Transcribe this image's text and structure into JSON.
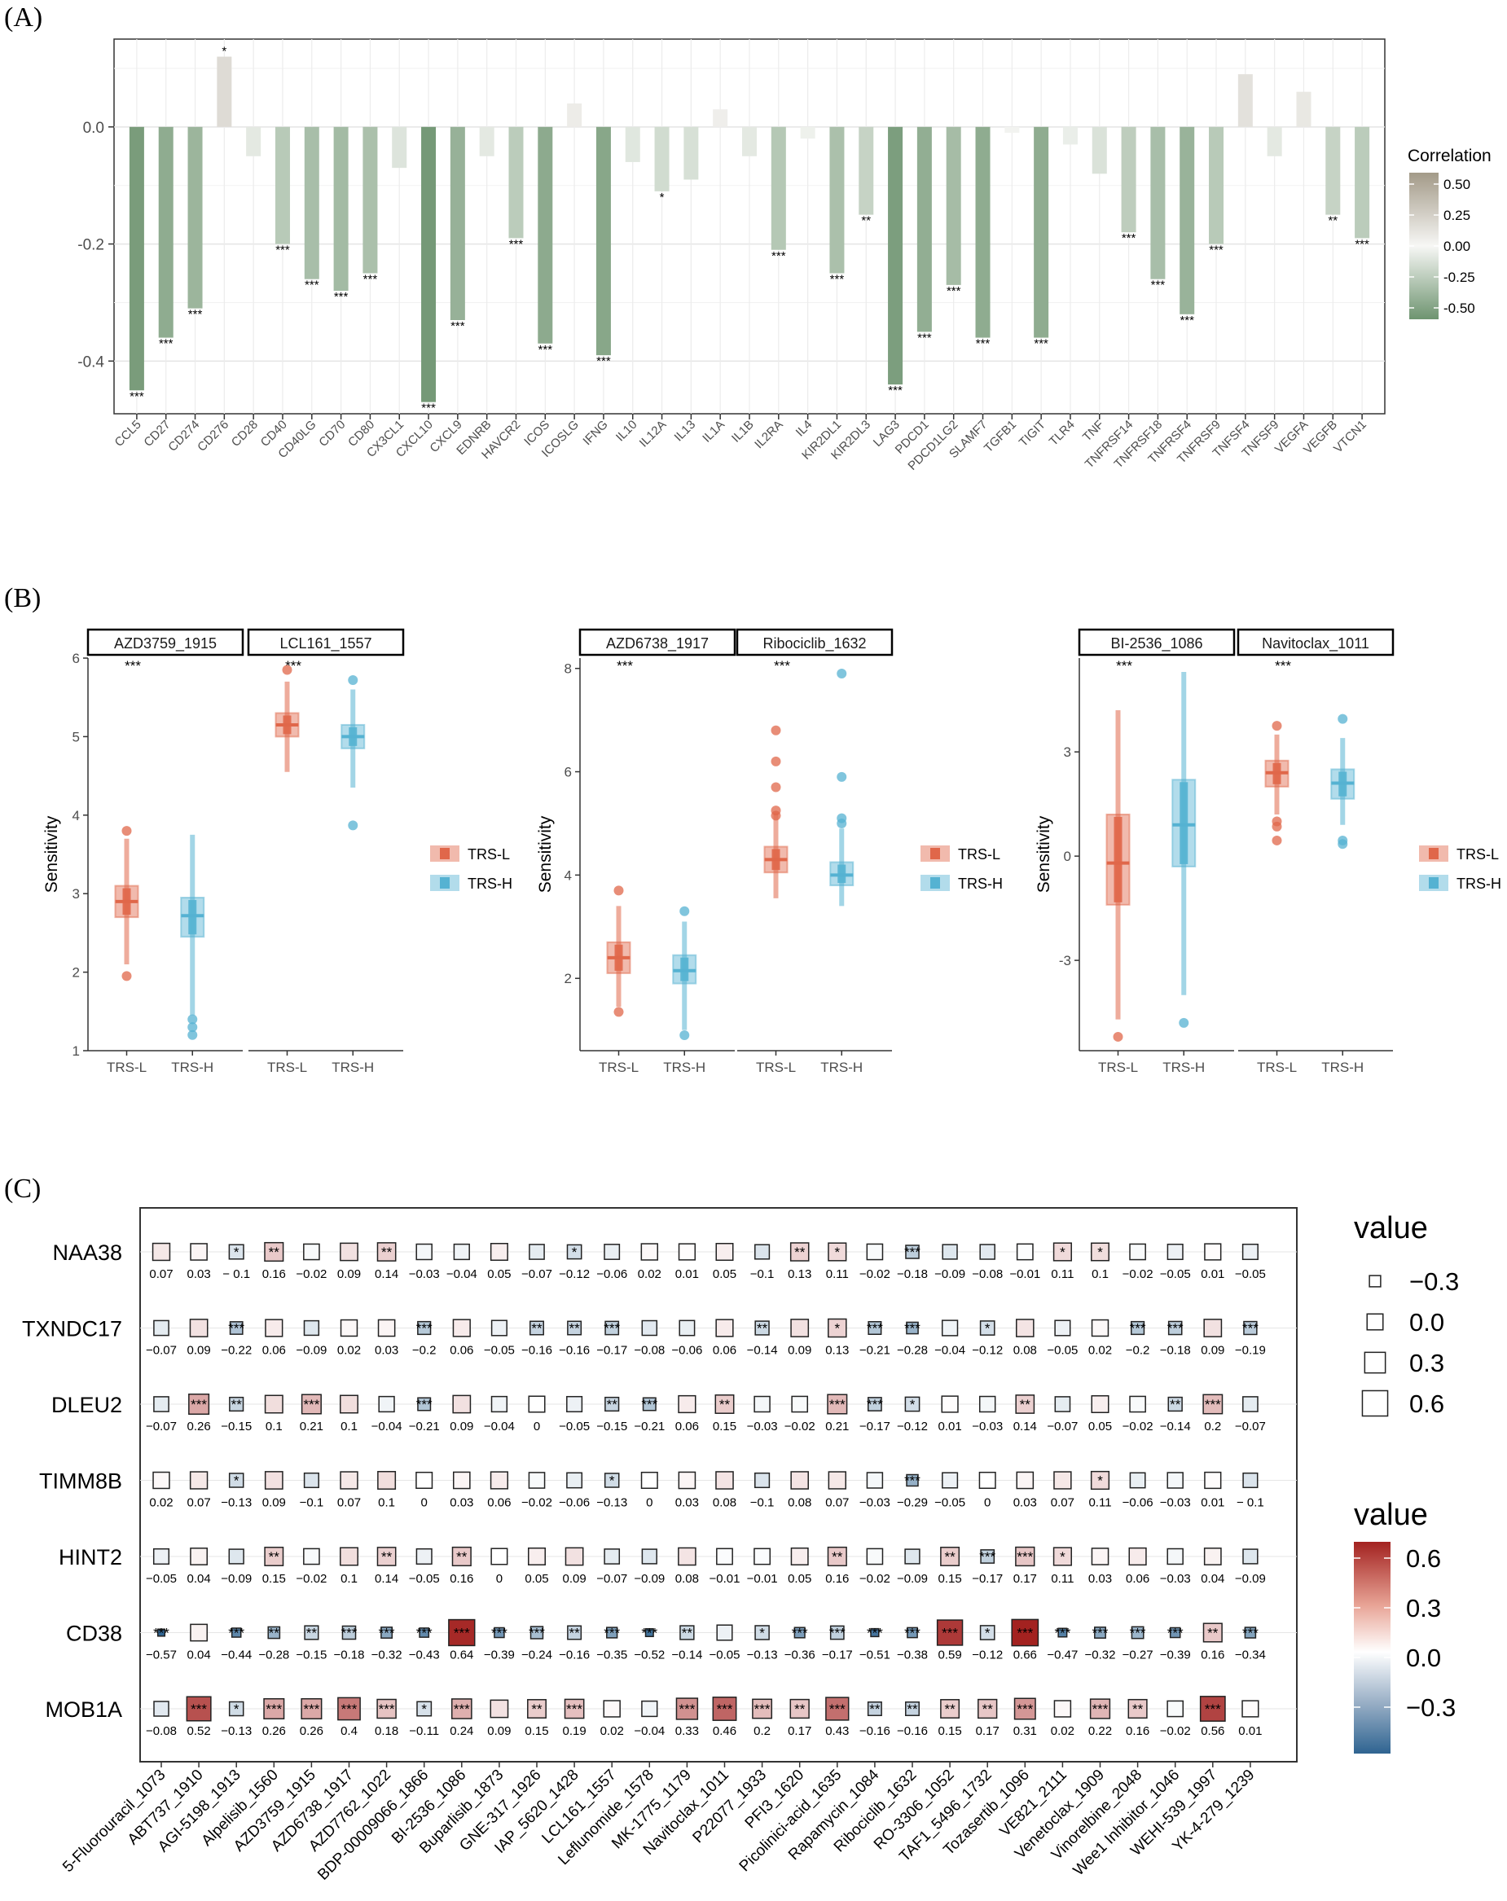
{
  "chart_data": [
    {
      "type": "bar",
      "panel_label": "(A)",
      "categories": [
        "CCL5",
        "CD27",
        "CD274",
        "CD276",
        "CD28",
        "CD40",
        "CD40LG",
        "CD70",
        "CD80",
        "CX3CL1",
        "CXCL10",
        "CXCL9",
        "EDNRB",
        "HAVCR2",
        "ICOS",
        "ICOSLG",
        "IFNG",
        "IL10",
        "IL12A",
        "IL13",
        "IL1A",
        "IL1B",
        "IL2RA",
        "IL4",
        "KIR2DL1",
        "KIR2DL3",
        "LAG3",
        "PDCD1",
        "PDCD1LG2",
        "SLAMF7",
        "TGFB1",
        "TIGIT",
        "TLR4",
        "TNF",
        "TNFRSF14",
        "TNFRSF18",
        "TNFRSF4",
        "TNFRSF9",
        "TNFSF4",
        "TNFSF9",
        "VEGFA",
        "VEGFB",
        "VTCN1"
      ],
      "values": [
        -0.45,
        -0.36,
        -0.31,
        0.12,
        -0.05,
        -0.2,
        -0.26,
        -0.28,
        -0.25,
        -0.07,
        -0.47,
        -0.33,
        -0.05,
        -0.19,
        -0.37,
        0.04,
        -0.39,
        -0.06,
        -0.11,
        -0.09,
        0.03,
        -0.05,
        -0.21,
        -0.02,
        -0.25,
        -0.15,
        -0.44,
        -0.35,
        -0.27,
        -0.36,
        -0.01,
        -0.36,
        -0.03,
        -0.08,
        -0.18,
        -0.26,
        -0.32,
        -0.2,
        0.09,
        -0.05,
        0.06,
        -0.15,
        -0.19
      ],
      "significance": [
        "***",
        "***",
        "***",
        "*",
        "",
        "***",
        "***",
        "***",
        "***",
        "",
        "***",
        "***",
        "",
        "***",
        "***",
        "",
        "***",
        "",
        "*",
        "",
        "",
        "",
        "***",
        "",
        "***",
        "**",
        "***",
        "***",
        "***",
        "***",
        "",
        "***",
        "",
        "",
        "***",
        "***",
        "***",
        "***",
        "",
        "",
        "",
        "**",
        "***"
      ],
      "yticks": [
        "0.0",
        "-0.2",
        "-0.4"
      ],
      "ylim": [
        -0.49,
        0.15
      ],
      "legend": {
        "title": "Correlation",
        "ticks": [
          "0.50",
          "0.25",
          "0.00",
          "-0.25",
          "-0.50"
        ]
      },
      "colors": {
        "negative": "#6e9470",
        "zero": "#f7f7f5",
        "positive": "#a39a88"
      }
    },
    {
      "type": "box",
      "panel_label": "(B)",
      "legend": {
        "groups": [
          "TRS-L",
          "TRS-H"
        ],
        "colors": [
          "#e0674a",
          "#55b2d2"
        ]
      },
      "ylabel": "Sensitivity",
      "groups": [
        {
          "yticks": [
            "6",
            "5",
            "4",
            "3",
            "2",
            "1"
          ],
          "ylim": [
            1,
            6
          ],
          "facets": [
            {
              "title": "AZD3759_1915",
              "sig": "***",
              "boxes": [
                {
                  "group": "TRS-L",
                  "q1": 2.7,
                  "median": 2.9,
                  "q3": 3.1,
                  "wlo": 2.1,
                  "whi": 3.7,
                  "outliers": [
                    1.95,
                    3.8
                  ]
                },
                {
                  "group": "TRS-H",
                  "q1": 2.45,
                  "median": 2.72,
                  "q3": 2.95,
                  "wlo": 1.45,
                  "whi": 3.75,
                  "outliers": [
                    1.2,
                    1.3,
                    1.4
                  ]
                }
              ]
            },
            {
              "title": "LCL161_1557",
              "sig": "***",
              "boxes": [
                {
                  "group": "TRS-L",
                  "q1": 5.0,
                  "median": 5.15,
                  "q3": 5.3,
                  "wlo": 4.55,
                  "whi": 5.7,
                  "outliers": [
                    5.85
                  ]
                },
                {
                  "group": "TRS-H",
                  "q1": 4.85,
                  "median": 5.0,
                  "q3": 5.15,
                  "wlo": 4.35,
                  "whi": 5.6,
                  "outliers": [
                    3.87,
                    5.72
                  ]
                }
              ]
            }
          ]
        },
        {
          "yticks": [
            "8",
            "6",
            "4",
            "2"
          ],
          "ylim": [
            0.6,
            8.2
          ],
          "facets": [
            {
              "title": "AZD6738_1917",
              "sig": "***",
              "boxes": [
                {
                  "group": "TRS-L",
                  "q1": 2.1,
                  "median": 2.4,
                  "q3": 2.7,
                  "wlo": 1.45,
                  "whi": 3.4,
                  "outliers": [
                    1.35,
                    3.7
                  ]
                },
                {
                  "group": "TRS-H",
                  "q1": 1.9,
                  "median": 2.15,
                  "q3": 2.45,
                  "wlo": 1.0,
                  "whi": 3.1,
                  "outliers": [
                    0.9,
                    3.3
                  ]
                }
              ]
            },
            {
              "title": "Ribociclib_1632",
              "sig": "***",
              "boxes": [
                {
                  "group": "TRS-L",
                  "q1": 4.05,
                  "median": 4.3,
                  "q3": 4.55,
                  "wlo": 3.55,
                  "whi": 5.2,
                  "outliers": [
                    5.15,
                    5.25,
                    5.7,
                    6.2,
                    6.8
                  ]
                },
                {
                  "group": "TRS-H",
                  "q1": 3.8,
                  "median": 4.0,
                  "q3": 4.25,
                  "wlo": 3.4,
                  "whi": 4.9,
                  "outliers": [
                    5.0,
                    5.1,
                    5.9,
                    7.9
                  ]
                }
              ]
            }
          ]
        },
        {
          "yticks": [
            "3",
            "0",
            "-3"
          ],
          "ylim": [
            -5.6,
            5.7
          ],
          "facets": [
            {
              "title": "BI-2536_1086",
              "sig": "***",
              "boxes": [
                {
                  "group": "TRS-L",
                  "q1": -1.4,
                  "median": -0.2,
                  "q3": 1.2,
                  "wlo": -4.7,
                  "whi": 4.2,
                  "outliers": [
                    -5.2
                  ]
                },
                {
                  "group": "TRS-H",
                  "q1": -0.3,
                  "median": 0.9,
                  "q3": 2.2,
                  "wlo": -4.0,
                  "whi": 5.3,
                  "outliers": [
                    -4.8
                  ]
                }
              ]
            },
            {
              "title": "Navitoclax_1011",
              "sig": "***",
              "boxes": [
                {
                  "group": "TRS-L",
                  "q1": 2.0,
                  "median": 2.4,
                  "q3": 2.75,
                  "wlo": 1.2,
                  "whi": 3.5,
                  "outliers": [
                    0.45,
                    0.85,
                    1.0,
                    3.75
                  ]
                },
                {
                  "group": "TRS-H",
                  "q1": 1.65,
                  "median": 2.1,
                  "q3": 2.5,
                  "wlo": 0.9,
                  "whi": 3.4,
                  "outliers": [
                    0.35,
                    0.45,
                    3.95
                  ]
                }
              ]
            }
          ]
        }
      ]
    },
    {
      "type": "heatmap",
      "panel_label": "(C)",
      "rows": [
        "NAA38",
        "TXNDC17",
        "DLEU2",
        "TIMM8B",
        "HINT2",
        "CD38",
        "MOB1A"
      ],
      "columns": [
        "5-Fluorouracil_1073",
        "ABT737_1910",
        "AGI-5198_1913",
        "Alpelisib_1560",
        "AZD3759_1915",
        "AZD6738_1917",
        "AZD7762_1022",
        "BDP-00009066_1866",
        "BI-2536_1086",
        "Buparlisib_1873",
        "GNE-317_1926",
        "IAP_5620_1428",
        "LCL161_1557",
        "Leflunomide_1578",
        "MK-1775_1179",
        "Navitoclax_1011",
        "P22077_1933",
        "PFI3_1620",
        "Picolinici-acid_1635",
        "Rapamycin_1084",
        "Ribociclib_1632",
        "RO-3306_1052",
        "TAF1_5496_1732",
        "Tozasertib_1096",
        "VE821_2111",
        "Venetoclax_1909",
        "Vinorelbine_2048",
        "Wee1 Inhibitor_1046",
        "WEHI-539_1997",
        "YK-4-279_1239"
      ],
      "labels": [
        [
          "0.07",
          "0.03",
          "− 0.1",
          "0.16",
          "−0.02",
          "0.09",
          "0.14",
          "−0.03",
          "−0.04",
          "0.05",
          "−0.07",
          "−0.12",
          "−0.06",
          "0.02",
          "0.01",
          "0.05",
          "−0.1",
          "0.13",
          "0.11",
          "−0.02",
          "−0.18",
          "−0.09",
          "−0.08",
          "−0.01",
          "0.11",
          "0.1",
          "−0.02",
          "−0.05",
          "0.01",
          "−0.05"
        ],
        [
          "−0.07",
          "0.09",
          "−0.22",
          "0.06",
          "−0.09",
          "0.02",
          "0.03",
          "−0.2",
          "0.06",
          "−0.05",
          "−0.16",
          "−0.16",
          "−0.17",
          "−0.08",
          "−0.06",
          "0.06",
          "−0.14",
          "0.09",
          "0.13",
          "−0.21",
          "−0.28",
          "−0.04",
          "−0.12",
          "0.08",
          "−0.05",
          "0.02",
          "−0.2",
          "−0.18",
          "0.09",
          "−0.19"
        ],
        [
          "−0.07",
          "0.26",
          "−0.15",
          "0.1",
          "0.21",
          "0.1",
          "−0.04",
          "−0.21",
          "0.09",
          "−0.04",
          "0",
          "−0.05",
          "−0.15",
          "−0.21",
          "0.06",
          "0.15",
          "−0.03",
          "−0.02",
          "0.21",
          "−0.17",
          "−0.12",
          "0.01",
          "−0.03",
          "0.14",
          "−0.07",
          "0.05",
          "−0.02",
          "−0.14",
          "0.2",
          "−0.07"
        ],
        [
          "0.02",
          "0.07",
          "−0.13",
          "0.09",
          "−0.1",
          "0.07",
          "0.1",
          "0",
          "0.03",
          "0.06",
          "−0.02",
          "−0.06",
          "−0.13",
          "0",
          "0.03",
          "0.08",
          "−0.1",
          "0.08",
          "0.07",
          "−0.03",
          "−0.29",
          "−0.05",
          "0",
          "0.03",
          "0.07",
          "0.11",
          "−0.06",
          "−0.03",
          "0.01",
          "− 0.1"
        ],
        [
          "−0.05",
          "0.04",
          "−0.09",
          "0.15",
          "−0.02",
          "0.1",
          "0.14",
          "−0.05",
          "0.16",
          "0",
          "0.05",
          "0.09",
          "−0.07",
          "−0.09",
          "0.08",
          "−0.01",
          "−0.01",
          "0.05",
          "0.16",
          "−0.02",
          "−0.09",
          "0.15",
          "−0.17",
          "0.17",
          "0.11",
          "0.03",
          "0.06",
          "−0.03",
          "0.04",
          "−0.09"
        ],
        [
          "−0.57",
          "0.04",
          "−0.44",
          "−0.28",
          "−0.15",
          "−0.18",
          "−0.32",
          "−0.43",
          "0.64",
          "−0.39",
          "−0.24",
          "−0.16",
          "−0.35",
          "−0.52",
          "−0.14",
          "−0.05",
          "−0.13",
          "−0.36",
          "−0.17",
          "−0.51",
          "−0.38",
          "0.59",
          "−0.12",
          "0.66",
          "−0.47",
          "−0.32",
          "−0.27",
          "−0.39",
          "0.16",
          "−0.34"
        ],
        [
          "−0.08",
          "0.52",
          "−0.13",
          "0.26",
          "0.26",
          "0.4",
          "0.18",
          "−0.11",
          "0.24",
          "0.09",
          "0.15",
          "0.19",
          "0.02",
          "−0.04",
          "0.33",
          "0.46",
          "0.2",
          "0.17",
          "0.43",
          "−0.16",
          "−0.16",
          "0.15",
          "0.17",
          "0.31",
          "0.02",
          "0.22",
          "0.16",
          "−0.02",
          "0.56",
          "0.01"
        ]
      ],
      "significance": [
        [
          "",
          "",
          "*",
          "**",
          "",
          "",
          "**",
          "",
          "",
          "",
          "",
          "*",
          "",
          "",
          "",
          "",
          "",
          "**",
          "*",
          "",
          "***",
          "",
          "",
          "",
          "*",
          "*",
          "",
          "",
          "",
          ""
        ],
        [
          "",
          "",
          "***",
          "",
          "",
          "",
          "",
          "***",
          "",
          "",
          "**",
          "**",
          "***",
          "",
          "",
          "",
          "**",
          "",
          "*",
          "***",
          "***",
          "",
          "*",
          "",
          "",
          "",
          "***",
          "***",
          "",
          "***"
        ],
        [
          "",
          "***",
          "**",
          "",
          "***",
          "",
          "",
          "***",
          "",
          "",
          "",
          "",
          "**",
          "***",
          "",
          "**",
          "",
          "",
          "***",
          "***",
          "*",
          "",
          "",
          "**",
          "",
          "",
          "",
          "**",
          "***",
          ""
        ],
        [
          "",
          "",
          "*",
          "",
          "",
          "",
          "",
          "",
          "",
          "",
          "",
          "",
          "*",
          "",
          "",
          "",
          "",
          "",
          "",
          "",
          "***",
          "",
          "",
          "",
          "",
          "*",
          "",
          "",
          "",
          ""
        ],
        [
          "",
          "",
          "",
          "**",
          "",
          "",
          "**",
          "",
          "**",
          "",
          "",
          "",
          "",
          "",
          "",
          "",
          "",
          "",
          "**",
          "",
          "",
          "**",
          "***",
          "***",
          "*",
          "",
          "",
          "",
          "",
          ""
        ],
        [
          "***",
          "",
          "***",
          "**",
          "**",
          "***",
          "***",
          "***",
          "***",
          "***",
          "***",
          "**",
          "***",
          "***",
          "**",
          "",
          "*",
          "***",
          "***",
          "***",
          "***",
          "***",
          "*",
          "***",
          "***",
          "***",
          "***",
          "***",
          "**",
          "***"
        ],
        [
          "",
          "***",
          "*",
          "***",
          "***",
          "***",
          "***",
          "*",
          "***",
          "",
          "**",
          "***",
          "",
          "",
          "***",
          "***",
          "***",
          "**",
          "***",
          "**",
          "**",
          "**",
          "**",
          "***",
          "",
          "***",
          "**",
          "",
          "***",
          ""
        ]
      ],
      "size_legend": {
        "title": "value",
        "ticks": [
          "−0.3",
          "0.0",
          "0.3",
          "0.6"
        ]
      },
      "color_legend": {
        "title": "value",
        "ticks": [
          "0.6",
          "0.3",
          "0.0",
          "−0.3"
        ]
      },
      "colors": {
        "low": "#2f6491",
        "mid": "#ffffff",
        "high": "#a32220"
      }
    }
  ]
}
